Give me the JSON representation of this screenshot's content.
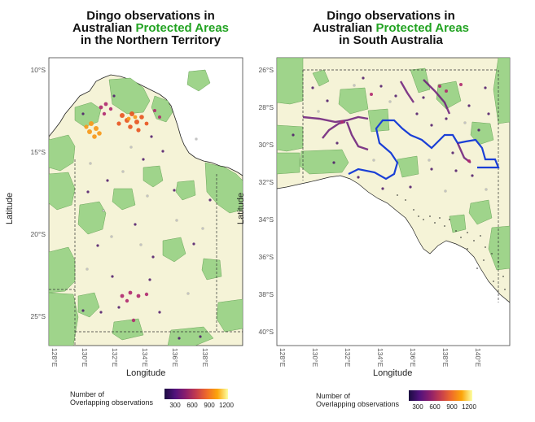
{
  "panels": [
    {
      "title_line1": "Dingo observations in",
      "title_line2_a": "Australian ",
      "title_line2_b": "Protected  Areas",
      "title_line3": "in the Northern Territory",
      "xlabel": "Longitude",
      "ylabel": "Latitude",
      "yticks": [
        "10°S",
        "15°S",
        "20°S",
        "25°S"
      ],
      "xticks": [
        "128°E",
        "130°E",
        "132°E",
        "134°E",
        "136°E",
        "138°E"
      ],
      "legend_title": "Number of\nOverlapping observations",
      "legend_ticks": [
        "300",
        "600",
        "900",
        "1200"
      ]
    },
    {
      "title_line1": "Dingo observations in",
      "title_line2_a": "Australian ",
      "title_line2_b": "Protected  Areas",
      "title_line3": "in South Australia",
      "xlabel": "Longitude",
      "ylabel": "Latitude",
      "yticks": [
        "26°S",
        "28°S",
        "30°S",
        "32°S",
        "34°S",
        "36°S",
        "38°S",
        "40°S"
      ],
      "xticks": [
        "128°E",
        "130°E",
        "132°E",
        "134°E",
        "136°E",
        "138°E",
        "140°E"
      ],
      "legend_title": "Number of\nOverlapping observations",
      "legend_ticks": [
        "300",
        "600",
        "900",
        "1200"
      ]
    }
  ],
  "colors": {
    "land": "#f5f3d7",
    "protected_area": "#9fd48b",
    "sea": "#ffffff",
    "highlight_boundary": "#1a3fd6",
    "title_accent": "#22a322"
  }
}
